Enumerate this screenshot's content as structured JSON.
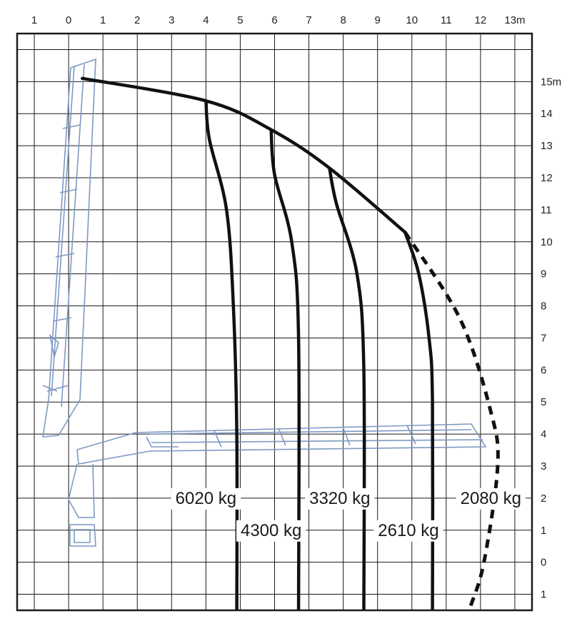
{
  "chart_data": {
    "type": "line",
    "x_ticks": [
      "1",
      "0",
      "1",
      "2",
      "3",
      "4",
      "5",
      "6",
      "7",
      "8",
      "9",
      "10",
      "11",
      "12",
      "13m"
    ],
    "y_ticks": [
      "15m",
      "14",
      "13",
      "12",
      "11",
      "10",
      "9",
      "8",
      "7",
      "6",
      "5",
      "4",
      "3",
      "2",
      "1",
      "0",
      "1"
    ],
    "xlim": [
      -1.5,
      13.5
    ],
    "ylim": [
      -1.5,
      16.5
    ],
    "grid": true,
    "envelope": [
      {
        "x": 0.4,
        "y": 15.1
      },
      {
        "x": 4.0,
        "y": 14.4
      },
      {
        "x": 5.9,
        "y": 13.5
      },
      {
        "x": 7.6,
        "y": 12.3
      },
      {
        "x": 9.8,
        "y": 10.3
      }
    ],
    "envelope_extension": [
      {
        "x": 9.8,
        "y": 10.3
      },
      {
        "x": 11.4,
        "y": 7.6
      },
      {
        "x": 12.3,
        "y": 4.7
      },
      {
        "x": 12.5,
        "y": 3.0
      },
      {
        "x": 12.1,
        "y": 0.0
      },
      {
        "x": 11.7,
        "y": -1.4
      }
    ],
    "series": [
      {
        "label": "6020 kg",
        "points": [
          {
            "x": 4.0,
            "y": 14.4
          },
          {
            "x": 4.1,
            "y": 13.2
          },
          {
            "x": 4.6,
            "y": 11.0
          },
          {
            "x": 4.8,
            "y": 8.0
          },
          {
            "x": 4.9,
            "y": 4.0
          },
          {
            "x": 4.9,
            "y": -1.5
          }
        ]
      },
      {
        "label": "4300 kg",
        "points": [
          {
            "x": 5.9,
            "y": 13.5
          },
          {
            "x": 6.0,
            "y": 12.1
          },
          {
            "x": 6.5,
            "y": 10.0
          },
          {
            "x": 6.7,
            "y": 7.0
          },
          {
            "x": 6.7,
            "y": -1.5
          }
        ]
      },
      {
        "label": "3320 kg",
        "points": [
          {
            "x": 7.6,
            "y": 12.3
          },
          {
            "x": 7.8,
            "y": 11.2
          },
          {
            "x": 8.4,
            "y": 9.0
          },
          {
            "x": 8.6,
            "y": 6.0
          },
          {
            "x": 8.6,
            "y": -1.5
          }
        ]
      },
      {
        "label": "2610 kg",
        "points": [
          {
            "x": 9.8,
            "y": 10.3
          },
          {
            "x": 10.2,
            "y": 9.0
          },
          {
            "x": 10.5,
            "y": 7.0
          },
          {
            "x": 10.6,
            "y": 5.0
          },
          {
            "x": 10.6,
            "y": -1.5
          }
        ]
      }
    ],
    "extension_label": "2080 kg"
  },
  "labels": [
    {
      "text": "6020 kg",
      "x": 4.0,
      "y": 2.0
    },
    {
      "text": "4300 kg",
      "x": 5.9,
      "y": 1.0
    },
    {
      "text": "3320 kg",
      "x": 7.9,
      "y": 2.0
    },
    {
      "text": "2610 kg",
      "x": 9.9,
      "y": 1.0
    },
    {
      "text": "2080 kg",
      "x": 12.3,
      "y": 2.0
    }
  ],
  "colors": {
    "curve": "#111111",
    "grid": "#1a1a1a",
    "crane": "#7d99c4"
  }
}
